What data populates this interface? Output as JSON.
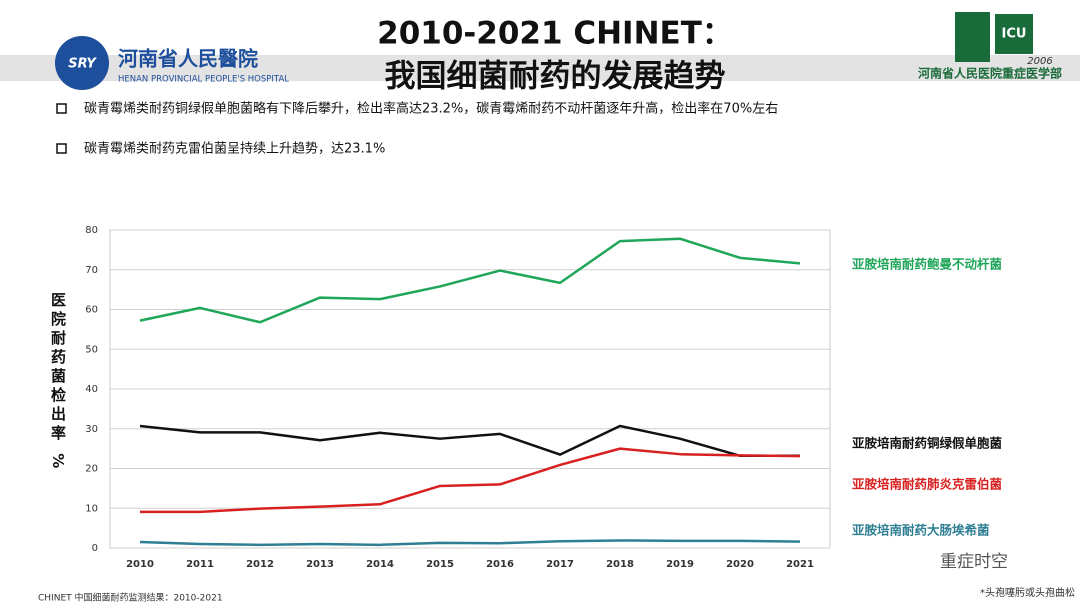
{
  "header": {
    "title_line1": "2010-2021 CHINET：",
    "title_line2": "我国细菌耐药的发展趋势",
    "hospital_name": "河南省人民醫院",
    "hospital_name_en": "HENAN PROVINCIAL PEOPLE'S HOSPITAL",
    "hospital_badge": "SRY",
    "icu_badge": "ICU",
    "icu_year": "2006",
    "icu_name": "河南省人民医院重症医学部"
  },
  "bullets": [
    "碳青霉烯类耐药铜绿假单胞菌略有下降后攀升，检出率高达23.2%，碳青霉烯耐药不动杆菌逐年升高，检出率在70%左右",
    "碳青霉烯类耐药克雷伯菌呈持续上升趋势，达23.1%"
  ],
  "footer": {
    "source": "CHINET 中国细菌耐药监测结果：2010-2021",
    "note": "*头孢噻肟或头孢曲松",
    "watermark": "重症时空"
  },
  "chart_data": {
    "type": "line",
    "ylabel": "医院耐药菌检出率 %",
    "categories": [
      "2010",
      "2011",
      "2012",
      "2013",
      "2014",
      "2015",
      "2016",
      "2017",
      "2018",
      "2019",
      "2020",
      "2021"
    ],
    "series": [
      {
        "name": "亚胺培南耐药鲍曼不动杆菌",
        "color": "#1fa659",
        "values": [
          57.2,
          60.4,
          56.8,
          63.0,
          62.6,
          65.8,
          69.8,
          66.7,
          77.2,
          77.8,
          73.0,
          71.6
        ]
      },
      {
        "name": "亚胺培南耐药铜绿假单胞菌",
        "color": "#111111",
        "values": [
          30.7,
          29.1,
          29.1,
          27.1,
          29.0,
          27.5,
          28.7,
          23.5,
          30.7,
          27.5,
          23.2,
          23.2
        ]
      },
      {
        "name": "亚胺培南耐药肺炎克雷伯菌",
        "color": "#d92020",
        "values": [
          9.1,
          9.1,
          9.9,
          10.4,
          11.0,
          15.6,
          16.0,
          20.9,
          25.0,
          23.6,
          23.3,
          23.1
        ]
      },
      {
        "name": "亚胺培南耐药大肠埃希菌",
        "color": "#2f7f92",
        "values": [
          1.5,
          1.0,
          0.8,
          1.0,
          0.8,
          1.3,
          1.2,
          1.7,
          1.9,
          1.8,
          1.8,
          1.6
        ]
      }
    ],
    "ylim": [
      0,
      80
    ],
    "yticks": [
      0,
      10,
      20,
      30,
      40,
      50,
      60,
      70,
      80
    ],
    "grid": true
  }
}
